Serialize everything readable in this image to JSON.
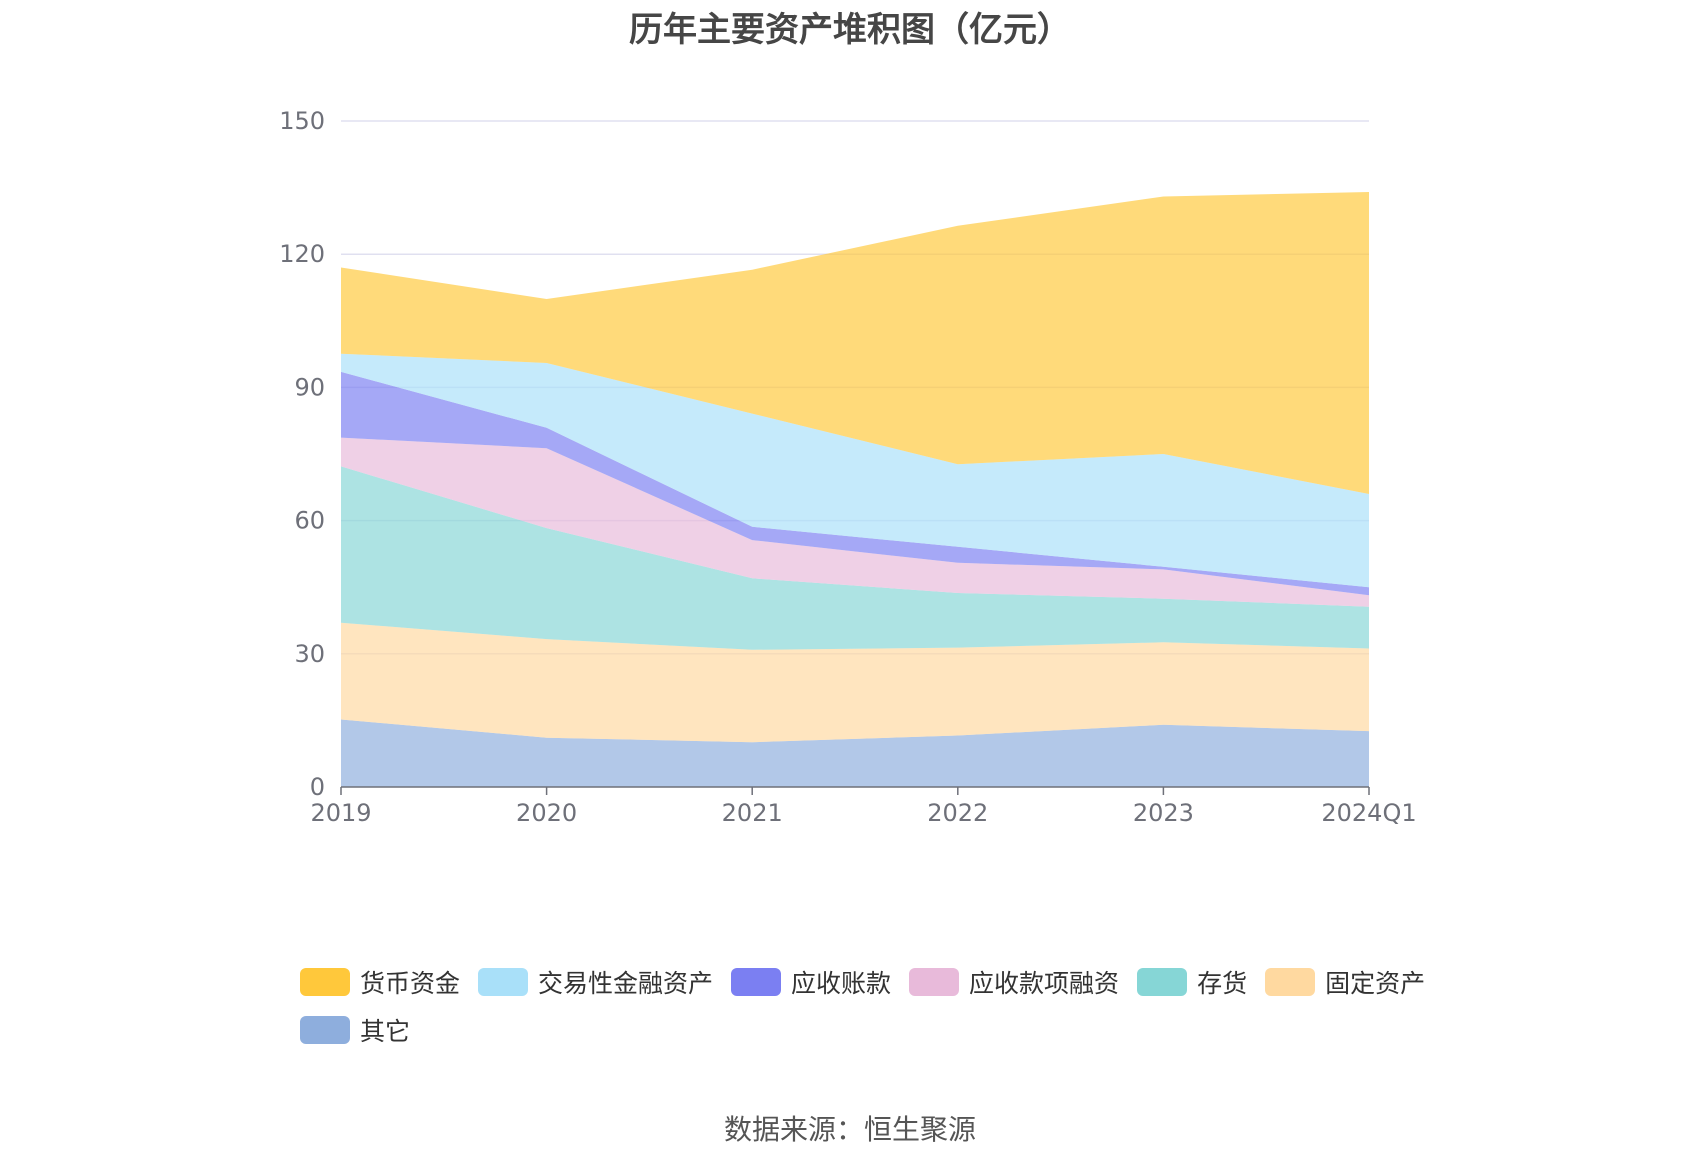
{
  "chart_data": {
    "type": "area",
    "title": "历年主要资产堆积图（亿元）",
    "categories": [
      "2019",
      "2020",
      "2021",
      "2022",
      "2023",
      "2024Q1"
    ],
    "ylim": [
      0,
      150
    ],
    "yticks": [
      0,
      30,
      60,
      90,
      120,
      150
    ],
    "grid": true,
    "stacked": true,
    "legend_position": "bottom",
    "series": [
      {
        "name": "其它",
        "color": "#8eaedd",
        "values": [
          15.2,
          11.1,
          10.1,
          11.6,
          14.0,
          12.6
        ]
      },
      {
        "name": "固定资产",
        "color": "#ffd9a0",
        "values": [
          21.8,
          22.2,
          20.8,
          19.8,
          18.6,
          18.6
        ]
      },
      {
        "name": "存货",
        "color": "#86d6d6",
        "values": [
          35.2,
          25.0,
          16.1,
          12.3,
          9.8,
          9.4
        ]
      },
      {
        "name": "应收款项融资",
        "color": "#e8bada",
        "values": [
          6.5,
          18.0,
          8.6,
          6.8,
          6.6,
          2.6
        ]
      },
      {
        "name": "应收账款",
        "color": "#7b7ff2",
        "values": [
          14.8,
          4.6,
          3.0,
          3.6,
          0.6,
          1.8
        ]
      },
      {
        "name": "交易性金融资产",
        "color": "#a9e0f9",
        "values": [
          4.1,
          14.6,
          25.5,
          18.6,
          25.4,
          21.0
        ]
      },
      {
        "name": "货币资金",
        "color": "#ffc83b",
        "values": [
          19.4,
          14.4,
          32.4,
          53.7,
          58.0,
          68.0
        ]
      }
    ]
  },
  "legend_order": [
    "货币资金",
    "交易性金融资产",
    "应收账款",
    "应收款项融资",
    "存货",
    "固定资产",
    "其它"
  ],
  "source_text": "数据来源：恒生聚源"
}
